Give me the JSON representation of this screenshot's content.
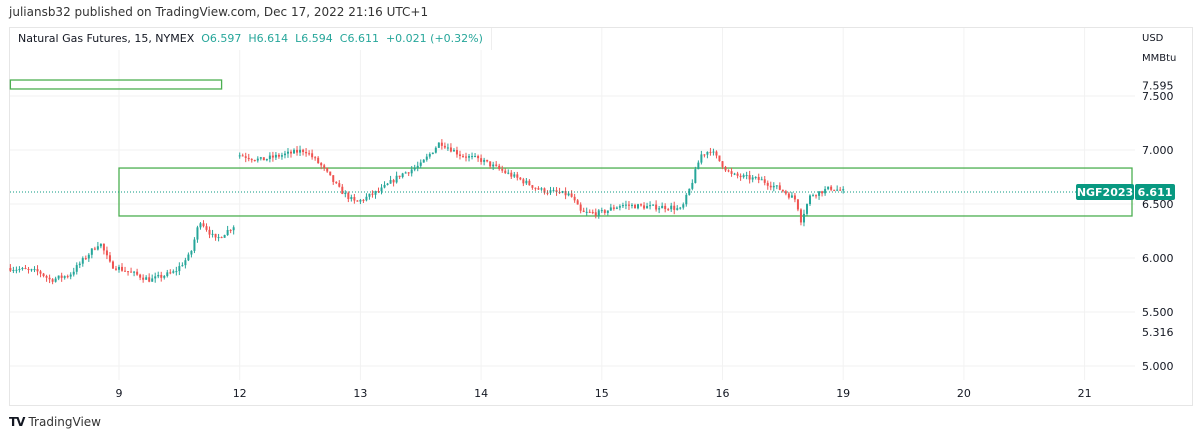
{
  "publish_line": "juliansb32 published on TradingView.com, Dec 17, 2022 21:16 UTC+1",
  "legend": {
    "symbol": "Natural Gas Futures, 15, NYMEX",
    "open": "O6.597",
    "high": "H6.614",
    "low": "L6.594",
    "close": "C6.611",
    "change": "+0.021 (+0.32%)"
  },
  "footer": {
    "brand": "TradingView"
  },
  "colors": {
    "up": "#26a69a",
    "down": "#ef5350",
    "box": "#4caf50",
    "badge": "#089981"
  },
  "chart_data": {
    "type": "candlestick",
    "title": "Natural Gas Futures, 15, NYMEX",
    "currency": "USD",
    "unit": "MMBtu",
    "x_ticks": [
      "9",
      "12",
      "13",
      "14",
      "15",
      "16",
      "19",
      "20",
      "21"
    ],
    "y_ticks": [
      "7.500",
      "7.000",
      "6.500",
      "6.000",
      "5.500",
      "5.000"
    ],
    "ylim": [
      4.95,
      7.75
    ],
    "extra_price_labels": [
      "7.595",
      "5.316"
    ],
    "last_price": {
      "symbol": "NGF2023",
      "value": "6.611",
      "price": 6.611
    },
    "price_path_session_units": [
      [
        -0.9,
        5.907
      ],
      [
        -0.66,
        5.87
      ],
      [
        -0.57,
        5.796
      ],
      [
        -0.41,
        5.843
      ],
      [
        -0.16,
        6.148
      ],
      [
        -0.07,
        5.935
      ],
      [
        0.26,
        5.796
      ],
      [
        0.46,
        5.87
      ],
      [
        0.59,
        6.028
      ],
      [
        0.67,
        6.352
      ],
      [
        0.8,
        6.167
      ],
      [
        0.96,
        6.306
      ],
      [
        1.0,
        6.954
      ],
      [
        1.17,
        6.907
      ],
      [
        1.54,
        7.0
      ],
      [
        1.67,
        6.861
      ],
      [
        1.83,
        6.63
      ],
      [
        1.96,
        6.509
      ],
      [
        2.17,
        6.63
      ],
      [
        2.33,
        6.769
      ],
      [
        2.5,
        6.861
      ],
      [
        2.66,
        7.074
      ],
      [
        2.83,
        6.954
      ],
      [
        3.0,
        6.907
      ],
      [
        3.16,
        6.815
      ],
      [
        3.33,
        6.722
      ],
      [
        3.49,
        6.63
      ],
      [
        3.74,
        6.583
      ],
      [
        3.83,
        6.417
      ],
      [
        3.99,
        6.417
      ],
      [
        4.16,
        6.491
      ],
      [
        4.41,
        6.472
      ],
      [
        4.57,
        6.472
      ],
      [
        4.66,
        6.444
      ],
      [
        4.74,
        6.676
      ],
      [
        4.82,
        6.954
      ],
      [
        4.9,
        7.0
      ],
      [
        5.07,
        6.769
      ],
      [
        5.32,
        6.722
      ],
      [
        5.49,
        6.63
      ],
      [
        5.61,
        6.537
      ],
      [
        5.65,
        6.352
      ],
      [
        5.73,
        6.583
      ],
      [
        5.9,
        6.648
      ],
      [
        6.02,
        6.611
      ]
    ],
    "gap_after_session_unit": 0.96,
    "zones": [
      {
        "from_price": 6.389,
        "to_price": 6.833,
        "start": 0,
        "end": 8.4
      },
      {
        "from_price": 7.565,
        "to_price": 7.648,
        "start": -0.9,
        "end": 0.85
      }
    ]
  }
}
